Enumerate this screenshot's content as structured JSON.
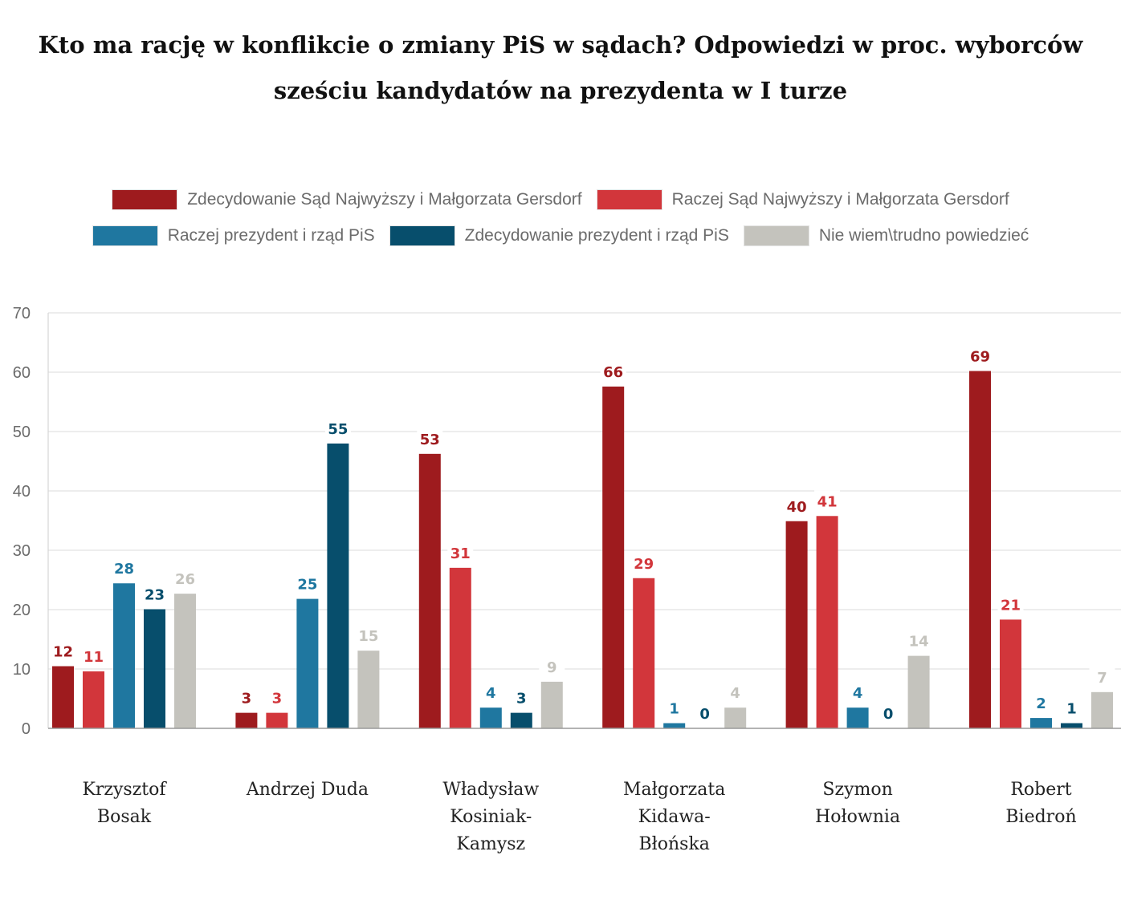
{
  "chart_data": {
    "type": "bar",
    "title_lines": [
      "Kto ma rację w konflikcie o zmiany PiS w sądach? Odpowiedzi w proc. wyborców",
      "sześciu kandydatów na prezydenta w I turze"
    ],
    "categories": [
      [
        "Krzysztof",
        "Bosak"
      ],
      [
        "Andrzej Duda"
      ],
      [
        "Władysław",
        "Kosiniak-",
        "Kamysz"
      ],
      [
        "Małgorzata",
        "Kidawa-",
        "Błońska"
      ],
      [
        "Szymon",
        "Hołownia"
      ],
      [
        "Robert",
        "Biedroń"
      ]
    ],
    "series": [
      {
        "name": "Zdecydowanie Sąd Najwyższy i Małgorzata Gersdorf",
        "color": "#9e1b1e",
        "values": [
          12,
          3,
          53,
          66,
          40,
          69
        ]
      },
      {
        "name": "Raczej Sąd Najwyższy i Małgorzata Gersdorf",
        "color": "#d2363b",
        "values": [
          11,
          3,
          31,
          29,
          41,
          21
        ]
      },
      {
        "name": "Raczej prezydent i rząd PiS",
        "color": "#1f77a0",
        "values": [
          28,
          25,
          4,
          1,
          4,
          2
        ]
      },
      {
        "name": "Zdecydowanie prezydent i rząd PiS",
        "color": "#074e6c",
        "values": [
          23,
          55,
          3,
          0,
          0,
          1
        ]
      },
      {
        "name": "Nie wiem\\trudno powiedzieć",
        "color": "#c4c3bd",
        "values": [
          26,
          15,
          9,
          4,
          14,
          7
        ]
      }
    ],
    "ylim": [
      0,
      70
    ],
    "yticks": [
      0,
      10,
      20,
      30,
      40,
      50,
      60,
      70
    ],
    "xlabel": "",
    "ylabel": "",
    "grid": true,
    "legend_position": "top"
  }
}
